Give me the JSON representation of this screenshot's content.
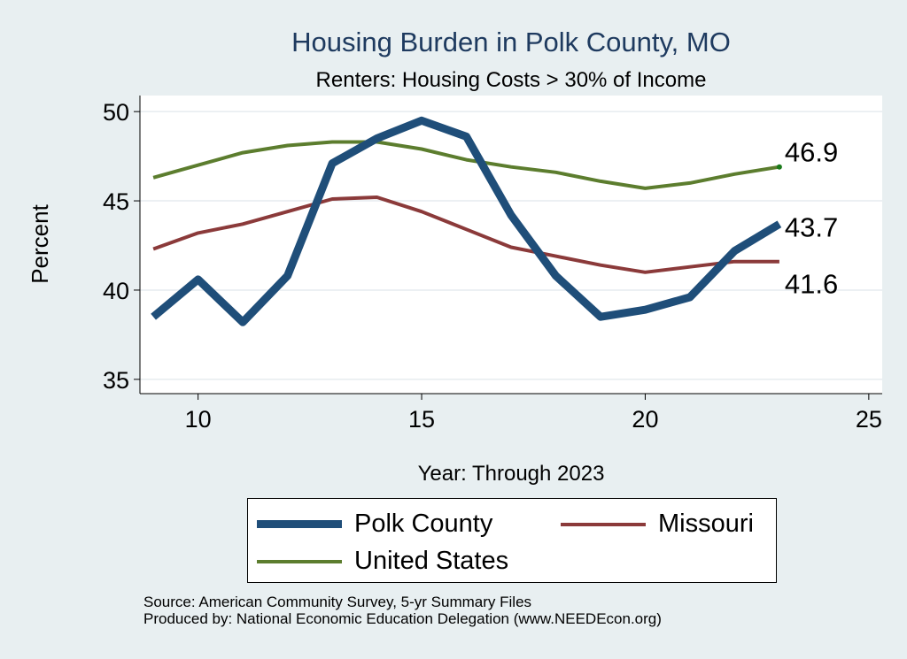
{
  "chart_data": {
    "type": "line",
    "title": "Housing Burden in Polk County, MO",
    "subtitle": "Renters: Housing Costs > 30% of Income",
    "xlabel": "Year: Through 2023",
    "ylabel": "Percent",
    "xlim": [
      8.7,
      25.3
    ],
    "ylim": [
      34.2,
      50.9
    ],
    "x_ticks": [
      10,
      15,
      20,
      25
    ],
    "y_ticks": [
      35,
      40,
      45,
      50
    ],
    "grid": true,
    "legend_position": "bottom",
    "x": [
      9,
      10,
      11,
      12,
      13,
      14,
      15,
      16,
      17,
      18,
      19,
      20,
      21,
      22,
      23
    ],
    "series": [
      {
        "name": "Polk County",
        "color": "#1f4e79",
        "width": 9,
        "values": [
          38.5,
          40.6,
          38.2,
          40.8,
          47.1,
          48.5,
          49.5,
          48.6,
          44.2,
          40.8,
          38.5,
          38.9,
          39.6,
          42.2,
          43.7
        ],
        "end_label": "43.7"
      },
      {
        "name": "Missouri",
        "color": "#8b3a3a",
        "width": 4,
        "values": [
          42.3,
          43.2,
          43.7,
          44.4,
          45.1,
          45.2,
          44.4,
          43.4,
          42.4,
          41.9,
          41.4,
          41.0,
          41.3,
          41.6,
          41.6
        ],
        "end_label": "41.6"
      },
      {
        "name": "United States",
        "color": "#5c7d2e",
        "width": 4,
        "values": [
          46.3,
          47.0,
          47.7,
          48.1,
          48.3,
          48.3,
          47.9,
          47.3,
          46.9,
          46.6,
          46.1,
          45.7,
          46.0,
          46.5,
          46.9
        ],
        "end_label": "46.9"
      }
    ]
  },
  "legend": {
    "items": [
      {
        "label": "Polk County",
        "color": "#1f4e79"
      },
      {
        "label": "Missouri",
        "color": "#8b3a3a"
      },
      {
        "label": "United States",
        "color": "#5c7d2e"
      }
    ]
  },
  "footer": {
    "source": "Source: American Community Survey, 5-yr Summary Files",
    "produced_by": "Produced by: National Economic Education Delegation (www.NEEDEcon.org)"
  }
}
